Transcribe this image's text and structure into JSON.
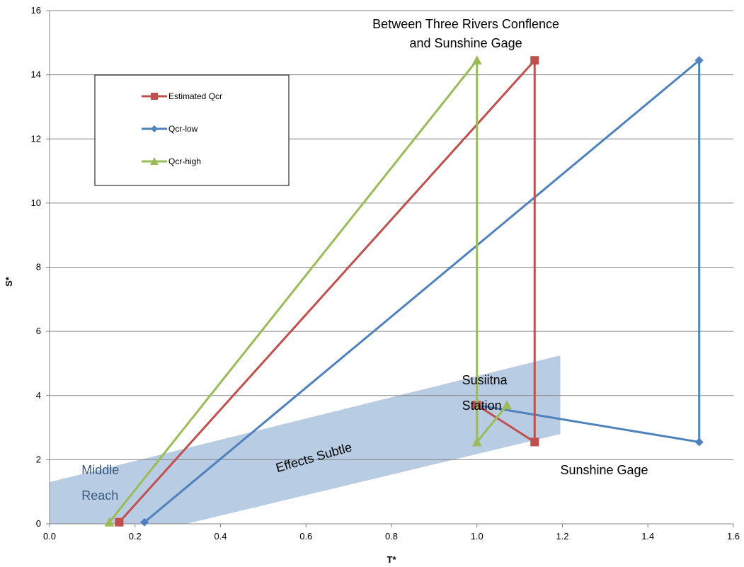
{
  "chart_data": {
    "type": "line",
    "title": "",
    "xlabel": "T*",
    "ylabel": "S*",
    "xlim": [
      0,
      1.6
    ],
    "ylim": [
      0,
      16
    ],
    "x_ticks": [
      "0.0",
      "0.2",
      "0.4",
      "0.6",
      "0.8",
      "1.0",
      "1.2",
      "1.4",
      "1.6"
    ],
    "y_ticks": [
      "0",
      "2",
      "4",
      "6",
      "8",
      "10",
      "12",
      "14",
      "16"
    ],
    "grid": "horizontal",
    "legend_position": "upper-left",
    "series": [
      {
        "name": "Estimated Qcr",
        "color": "#c0504d",
        "marker": "square",
        "points": [
          [
            0.163,
            0.05
          ],
          [
            1.135,
            14.45
          ],
          [
            1.135,
            2.55
          ],
          [
            1.0,
            3.7
          ]
        ]
      },
      {
        "name": "Qcr-low",
        "color": "#4f81bd",
        "marker": "diamond",
        "points": [
          [
            0.222,
            0.05
          ],
          [
            1.52,
            14.45
          ],
          [
            1.52,
            2.55
          ],
          [
            1.0,
            3.7
          ]
        ]
      },
      {
        "name": "Qcr-high",
        "color": "#9bbb59",
        "marker": "triangle",
        "points": [
          [
            0.14,
            0.05
          ],
          [
            1.0,
            14.45
          ],
          [
            1.0,
            2.55
          ],
          [
            1.07,
            3.7
          ]
        ]
      }
    ],
    "band": {
      "label": "Effects Subtle",
      "color": "#b8cce4",
      "polygon": [
        [
          0,
          1.3
        ],
        [
          1.195,
          5.25
        ],
        [
          1.195,
          2.8
        ],
        [
          0.32,
          0
        ],
        [
          0,
          0
        ]
      ]
    },
    "annotations": [
      {
        "text": "Between Three Rivers Conflence",
        "x": 1.09,
        "y": 15.45
      },
      {
        "text": "and Sunshine Gage",
        "x": 1.09,
        "y": 14.85
      },
      {
        "text": "Susiitna",
        "x": 0.965,
        "y": 4.35
      },
      {
        "text": "Station",
        "x": 0.965,
        "y": 3.55
      },
      {
        "text": "Sunshine Gage",
        "x": 1.195,
        "y": 1.55
      },
      {
        "text": "Middle",
        "x": 0.075,
        "y": 1.55
      },
      {
        "text": "Reach",
        "x": 0.075,
        "y": 0.75
      }
    ]
  }
}
